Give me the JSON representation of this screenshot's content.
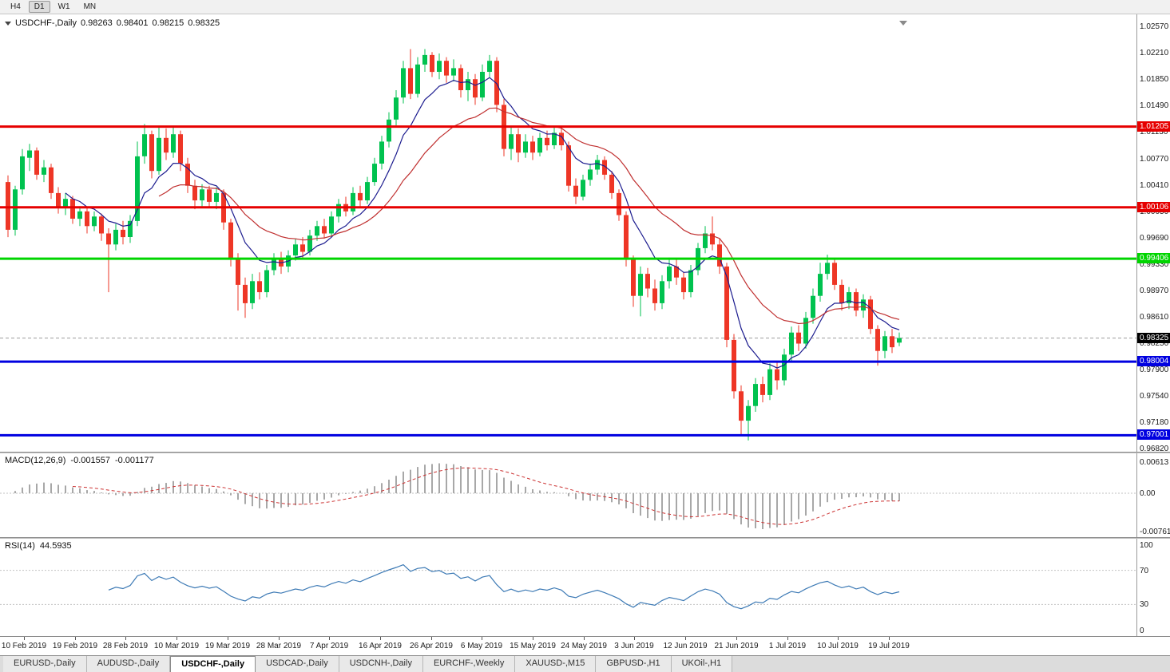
{
  "toolbar": {
    "timeframes": [
      {
        "label": "H4",
        "active": false
      },
      {
        "label": "D1",
        "active": true
      },
      {
        "label": "W1",
        "active": false
      },
      {
        "label": "MN",
        "active": false
      }
    ]
  },
  "header": {
    "symbol": "USDCHF-,Daily",
    "open": "0.98263",
    "high": "0.98401",
    "low": "0.98215",
    "close": "0.98325"
  },
  "indicators": {
    "macd": {
      "label": "MACD(12,26,9)",
      "value1": "-0.001557",
      "value2": "-0.001177",
      "axis_labels": [
        "0.00613",
        "0.00",
        "-0.00761"
      ]
    },
    "rsi": {
      "label": "RSI(14)",
      "value": "44.5935",
      "axis_labels": [
        "100",
        "70",
        "30",
        "0"
      ],
      "levels": [
        70,
        30
      ]
    }
  },
  "bottom_tabs": [
    {
      "label": "EURUSD-,Daily",
      "active": false
    },
    {
      "label": "AUDUSD-,Daily",
      "active": false
    },
    {
      "label": "USDCHF-,Daily",
      "active": true
    },
    {
      "label": "USDCAD-,Daily",
      "active": false
    },
    {
      "label": "USDCNH-,Daily",
      "active": false
    },
    {
      "label": "EURCHF-,Weekly",
      "active": false
    },
    {
      "label": "XAUUSD-,M15",
      "active": false
    },
    {
      "label": "GBPUSD-,H1",
      "active": false
    },
    {
      "label": "UKOil-,H1",
      "active": false
    }
  ],
  "chart_data": {
    "type": "candlestick",
    "title": "USDCHF-,Daily",
    "ylim": [
      0.96777,
      1.02733
    ],
    "y_labels": [
      "1.02570",
      "1.02210",
      "1.01850",
      "1.01490",
      "1.01130",
      "1.00770",
      "1.00410",
      "1.00050",
      "0.99690",
      "0.99330",
      "0.98970",
      "0.98610",
      "0.98250",
      "0.97900",
      "0.97540",
      "0.97180",
      "0.96820"
    ],
    "x_labels": [
      "10 Feb 2019",
      "19 Feb 2019",
      "28 Feb 2019",
      "10 Mar 2019",
      "19 Mar 2019",
      "28 Mar 2019",
      "7 Apr 2019",
      "16 Apr 2019",
      "26 Apr 2019",
      "6 May 2019",
      "15 May 2019",
      "24 May 2019",
      "3 Jun 2019",
      "12 Jun 2019",
      "21 Jun 2019",
      "1 Jul 2019",
      "10 Jul 2019",
      "19 Jul 2019"
    ],
    "colors": {
      "up": "#00c24f",
      "down": "#ee3626",
      "ma_fast": "#1c1c8f",
      "ma_slow": "#c03030",
      "rsi": "#3d7ab5",
      "macd_hist": "#a8a8a8",
      "macd_signal": "#cc3333"
    },
    "current_price": 0.98325,
    "levels": [
      {
        "label": "1.01205",
        "price": 1.01205,
        "color": "#e60000"
      },
      {
        "label": "1.00106",
        "price": 1.00106,
        "color": "#e60000"
      },
      {
        "label": "0.99406",
        "price": 0.99406,
        "color": "#00d500"
      },
      {
        "label": "0.98004",
        "price": 0.98004,
        "color": "#0000e0"
      },
      {
        "label": "0.97001",
        "price": 0.97001,
        "color": "#0000e0"
      }
    ],
    "moving_averages": [
      {
        "name": "fast",
        "type": "ema",
        "period": 8
      },
      {
        "name": "slow",
        "type": "ema",
        "period": 21
      }
    ],
    "macd_params": {
      "fast": 12,
      "slow": 26,
      "signal": 9
    },
    "rsi_period": 14,
    "ohlc": [
      [
        1.0045,
        1.0054,
        0.997,
        0.998
      ],
      [
        0.998,
        1.004,
        0.9972,
        1.0035
      ],
      [
        1.0035,
        1.009,
        1.0028,
        1.008
      ],
      [
        1.0078,
        1.0097,
        1.006,
        1.0088
      ],
      [
        1.0088,
        1.0092,
        1.0048,
        1.0055
      ],
      [
        1.0055,
        1.0075,
        1.0045,
        1.0065
      ],
      [
        1.0065,
        1.007,
        1.0022,
        1.003
      ],
      [
        1.003,
        1.0038,
        1.0002,
        1.001
      ],
      [
        1.001,
        1.003,
        1.0,
        1.0022
      ],
      [
        1.0022,
        1.0026,
        0.9988,
        0.9995
      ],
      [
        0.9995,
        1.0012,
        0.9985,
        1.0005
      ],
      [
        1.0005,
        1.001,
        0.9975,
        0.9985
      ],
      [
        0.9985,
        1.0005,
        0.9978,
        0.9998
      ],
      [
        0.9998,
        1.0002,
        0.9965,
        0.9975
      ],
      [
        0.9975,
        0.9982,
        0.9895,
        0.996
      ],
      [
        0.996,
        0.9988,
        0.9952,
        0.998
      ],
      [
        0.998,
        0.9992,
        0.996,
        0.997
      ],
      [
        0.997,
        1.0,
        0.9962,
        0.9992
      ],
      [
        0.9992,
        1.01,
        0.9985,
        1.008
      ],
      [
        1.008,
        1.0124,
        1.007,
        1.011
      ],
      [
        1.011,
        1.0115,
        1.005,
        1.006
      ],
      [
        1.006,
        1.012,
        1.0055,
        1.0105
      ],
      [
        1.0105,
        1.0118,
        1.0075,
        1.0085
      ],
      [
        1.0085,
        1.0121,
        1.0078,
        1.011
      ],
      [
        1.011,
        1.0115,
        1.006,
        1.007
      ],
      [
        1.007,
        1.0078,
        1.003,
        1.004
      ],
      [
        1.004,
        1.0048,
        1.0008,
        1.002
      ],
      [
        1.002,
        1.0042,
        1.0012,
        1.0035
      ],
      [
        1.0035,
        1.004,
        1.001,
        1.0018
      ],
      [
        1.0018,
        1.0038,
        1.0008,
        1.003
      ],
      [
        1.003,
        1.0035,
        0.998,
        0.999
      ],
      [
        0.999,
        0.9995,
        0.993,
        0.994
      ],
      [
        0.994,
        0.9948,
        0.987,
        0.9905
      ],
      [
        0.9905,
        0.9915,
        0.986,
        0.988
      ],
      [
        0.988,
        0.992,
        0.9872,
        0.991
      ],
      [
        0.991,
        0.9922,
        0.9885,
        0.9895
      ],
      [
        0.9895,
        0.9932,
        0.9888,
        0.9925
      ],
      [
        0.9925,
        0.9948,
        0.9918,
        0.994
      ],
      [
        0.994,
        0.995,
        0.992,
        0.993
      ],
      [
        0.993,
        0.9952,
        0.9922,
        0.9945
      ],
      [
        0.9945,
        0.9968,
        0.9938,
        0.996
      ],
      [
        0.996,
        0.997,
        0.9942,
        0.995
      ],
      [
        0.995,
        0.998,
        0.9945,
        0.9972
      ],
      [
        0.9972,
        0.9992,
        0.9965,
        0.9985
      ],
      [
        0.9985,
        0.9995,
        0.9968,
        0.9975
      ],
      [
        0.9975,
        1.0005,
        0.997,
        0.9998
      ],
      [
        0.9998,
        1.0022,
        0.999,
        1.0015
      ],
      [
        1.0015,
        1.0025,
        0.9998,
        1.0005
      ],
      [
        1.0005,
        1.0038,
        1.0,
        1.003
      ],
      [
        1.003,
        1.004,
        1.0012,
        1.002
      ],
      [
        1.002,
        1.0052,
        1.0015,
        1.0045
      ],
      [
        1.0045,
        1.0078,
        1.004,
        1.007
      ],
      [
        1.007,
        1.0108,
        1.0062,
        1.01
      ],
      [
        1.01,
        1.014,
        1.0092,
        1.013
      ],
      [
        1.013,
        1.017,
        1.0122,
        1.016
      ],
      [
        1.016,
        1.021,
        1.0152,
        1.02
      ],
      [
        1.02,
        1.0226,
        1.0158,
        1.0165
      ],
      [
        1.0165,
        1.0215,
        1.016,
        1.0205
      ],
      [
        1.0205,
        1.0226,
        1.0195,
        1.0218
      ],
      [
        1.0218,
        1.0222,
        1.0188,
        1.0195
      ],
      [
        1.0195,
        1.022,
        1.0185,
        1.021
      ],
      [
        1.021,
        1.0215,
        1.018,
        1.019
      ],
      [
        1.019,
        1.0212,
        1.0182,
        1.02
      ],
      [
        1.02,
        1.0205,
        1.016,
        1.017
      ],
      [
        1.017,
        1.0195,
        1.0155,
        1.0185
      ],
      [
        1.0185,
        1.0192,
        1.015,
        1.016
      ],
      [
        1.016,
        1.0205,
        1.0155,
        1.0195
      ],
      [
        1.0195,
        1.0218,
        1.0188,
        1.021
      ],
      [
        1.021,
        1.0215,
        1.014,
        1.015
      ],
      [
        1.015,
        1.0158,
        1.008,
        1.009
      ],
      [
        1.009,
        1.012,
        1.0075,
        1.011
      ],
      [
        1.011,
        1.0118,
        1.0072,
        1.0085
      ],
      [
        1.0085,
        1.011,
        1.0078,
        1.01
      ],
      [
        1.01,
        1.0108,
        1.0075,
        1.0085
      ],
      [
        1.0085,
        1.0112,
        1.008,
        1.0105
      ],
      [
        1.0105,
        1.0115,
        1.0088,
        1.0095
      ],
      [
        1.0095,
        1.012,
        1.009,
        1.0112
      ],
      [
        1.0112,
        1.0118,
        1.0088,
        1.0095
      ],
      [
        1.0095,
        1.01,
        1.0032,
        1.004
      ],
      [
        1.004,
        1.005,
        1.0015,
        1.0025
      ],
      [
        1.0025,
        1.0055,
        1.002,
        1.0048
      ],
      [
        1.0048,
        1.007,
        1.004,
        1.0062
      ],
      [
        1.0062,
        1.0082,
        1.0055,
        1.0075
      ],
      [
        1.0075,
        1.008,
        1.0048,
        1.0055
      ],
      [
        1.0055,
        1.006,
        1.0022,
        1.003
      ],
      [
        1.003,
        1.0035,
        0.9992,
        1.0
      ],
      [
        1.0,
        1.0005,
        0.993,
        0.994
      ],
      [
        0.994,
        0.9945,
        0.9875,
        0.989
      ],
      [
        0.989,
        0.993,
        0.9862,
        0.992
      ],
      [
        0.992,
        0.9928,
        0.9888,
        0.99
      ],
      [
        0.99,
        0.9912,
        0.987,
        0.988
      ],
      [
        0.988,
        0.9918,
        0.9872,
        0.991
      ],
      [
        0.991,
        0.9942,
        0.99,
        0.993
      ],
      [
        0.993,
        0.994,
        0.9905,
        0.9915
      ],
      [
        0.9915,
        0.9922,
        0.9885,
        0.9895
      ],
      [
        0.9895,
        0.9932,
        0.9888,
        0.9925
      ],
      [
        0.9925,
        0.9962,
        0.9918,
        0.9955
      ],
      [
        0.9955,
        0.9985,
        0.9948,
        0.9975
      ],
      [
        0.9975,
        0.9998,
        0.9952,
        0.996
      ],
      [
        0.996,
        0.9968,
        0.992,
        0.993
      ],
      [
        0.993,
        0.9935,
        0.982,
        0.983
      ],
      [
        0.983,
        0.9838,
        0.975,
        0.976
      ],
      [
        0.976,
        0.9768,
        0.97,
        0.972
      ],
      [
        0.972,
        0.9748,
        0.9693,
        0.974
      ],
      [
        0.974,
        0.9778,
        0.9732,
        0.977
      ],
      [
        0.977,
        0.978,
        0.9745,
        0.9755
      ],
      [
        0.9755,
        0.9798,
        0.9748,
        0.979
      ],
      [
        0.979,
        0.98,
        0.9762,
        0.9775
      ],
      [
        0.9775,
        0.9818,
        0.9768,
        0.981
      ],
      [
        0.981,
        0.9848,
        0.98,
        0.984
      ],
      [
        0.984,
        0.985,
        0.9815,
        0.9825
      ],
      [
        0.9825,
        0.9868,
        0.9818,
        0.986
      ],
      [
        0.986,
        0.99,
        0.9852,
        0.989
      ],
      [
        0.989,
        0.9935,
        0.9882,
        0.992
      ],
      [
        0.992,
        0.9946,
        0.9912,
        0.9935
      ],
      [
        0.9935,
        0.994,
        0.9898,
        0.9905
      ],
      [
        0.9905,
        0.9912,
        0.987,
        0.988
      ],
      [
        0.988,
        0.9902,
        0.9872,
        0.9895
      ],
      [
        0.9895,
        0.99,
        0.9862,
        0.987
      ],
      [
        0.987,
        0.9892,
        0.986,
        0.9885
      ],
      [
        0.9885,
        0.989,
        0.9838,
        0.9845
      ],
      [
        0.9845,
        0.985,
        0.9795,
        0.9815
      ],
      [
        0.9815,
        0.9842,
        0.9805,
        0.9835
      ],
      [
        0.9835,
        0.9845,
        0.9812,
        0.982
      ],
      [
        0.98263,
        0.98401,
        0.98215,
        0.98325
      ]
    ]
  }
}
